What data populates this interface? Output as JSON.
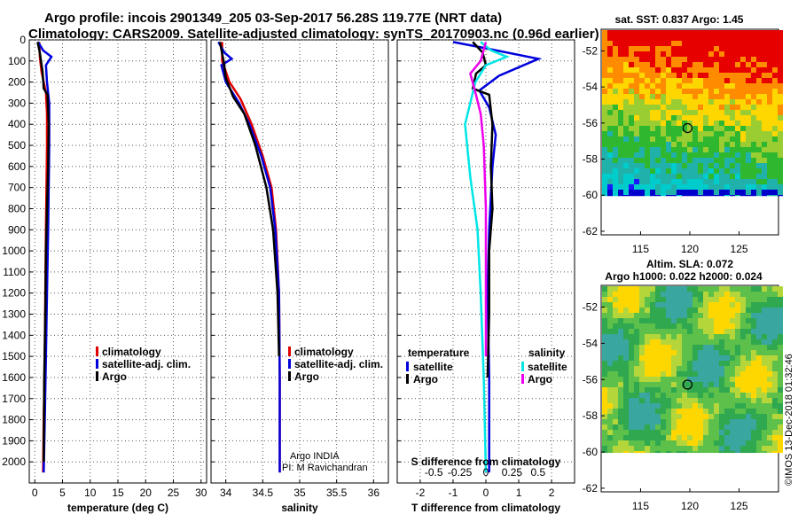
{
  "header": {
    "line1": "Argo profile: incois 2901349_205 03-Sep-2017 56.28S 119.77E (NRT data)",
    "line2": "Climatology: CARS2009. Satellite-adjusted climatology: synTS_20170903.nc (0.96d earlier)"
  },
  "colors": {
    "climatology": "#e00000",
    "satellite": "#0000dd",
    "argo": "#000000",
    "sat_salinity": "#00e5e5",
    "argo_salinity": "#ee00ee"
  },
  "chart_data": [
    {
      "type": "line",
      "name": "temperature",
      "xlabel": "temperature (deg C)",
      "xlim": [
        -1,
        31
      ],
      "xticks": [
        0,
        5,
        10,
        15,
        20,
        25,
        30
      ],
      "ylim": [
        2100,
        0
      ],
      "yticks": [
        0,
        100,
        200,
        300,
        400,
        500,
        600,
        700,
        800,
        900,
        1000,
        1100,
        1200,
        1300,
        1400,
        1500,
        1600,
        1700,
        1800,
        1900,
        2000
      ],
      "legend": [
        "climatology",
        "satellite-adj. clim.",
        "Argo"
      ],
      "series": [
        {
          "name": "climatology",
          "x": [
            0.8,
            0.9,
            1.2,
            1.6,
            2.0,
            2.2,
            2.2,
            2.1,
            2.0,
            1.9,
            1.8,
            1.6,
            1.5
          ],
          "depth": [
            10,
            80,
            150,
            200,
            250,
            350,
            500,
            700,
            900,
            1200,
            1500,
            1800,
            2050
          ]
        },
        {
          "name": "satellite-adj. clim.",
          "x": [
            0.6,
            1.5,
            3.0,
            2.0,
            2.2,
            2.6,
            2.6,
            2.5,
            2.4,
            2.2,
            2.0,
            1.8,
            1.6
          ],
          "depth": [
            10,
            50,
            80,
            120,
            200,
            300,
            500,
            700,
            900,
            1200,
            1500,
            1800,
            2050
          ]
        },
        {
          "name": "Argo",
          "x": [
            0.5,
            0.9,
            1.4,
            1.6,
            2.3,
            2.5,
            2.4,
            2.2,
            2.0,
            1.9,
            1.7,
            1.6
          ],
          "depth": [
            10,
            60,
            150,
            230,
            260,
            400,
            600,
            800,
            1000,
            1300,
            1600,
            2000
          ]
        }
      ]
    },
    {
      "type": "line",
      "name": "salinity",
      "xlabel": "salinity",
      "xlim": [
        33.8,
        36.2
      ],
      "xticks": [
        34,
        34.5,
        35,
        35.5,
        36
      ],
      "ylim": [
        2100,
        0
      ],
      "legend": [
        "climatology",
        "satellite-adj. clim.",
        "Argo"
      ],
      "annotation": [
        "Argo INDIA",
        "PI: M Ravichandran"
      ],
      "series": [
        {
          "name": "climatology",
          "x": [
            33.95,
            33.95,
            34.05,
            34.2,
            34.35,
            34.5,
            34.62,
            34.68,
            34.72,
            34.73,
            34.73
          ],
          "depth": [
            10,
            100,
            200,
            280,
            400,
            550,
            700,
            900,
            1200,
            1600,
            2050
          ]
        },
        {
          "name": "satellite-adj. clim.",
          "x": [
            33.9,
            33.98,
            34.08,
            33.94,
            34.0,
            34.18,
            34.32,
            34.48,
            34.6,
            34.67,
            34.72,
            34.73,
            34.73
          ],
          "depth": [
            10,
            60,
            90,
            120,
            200,
            300,
            400,
            550,
            700,
            900,
            1200,
            1600,
            2050
          ]
        },
        {
          "name": "Argo",
          "x": [
            33.92,
            33.97,
            34.0,
            34.1,
            34.25,
            34.4,
            34.55,
            34.64,
            34.7,
            34.72
          ],
          "depth": [
            10,
            100,
            180,
            270,
            350,
            500,
            700,
            900,
            1200,
            1500
          ]
        }
      ]
    },
    {
      "type": "line",
      "name": "difference",
      "xlabel": "T difference from climatology",
      "xlabel2": "S difference from climatology",
      "xlim": [
        -2.7,
        2.7
      ],
      "xticks": [
        -2,
        -1,
        0,
        1,
        2
      ],
      "xlim2": [
        -0.85,
        0.85
      ],
      "xticks2": [
        -0.5,
        -0.25,
        0,
        0.25,
        0.5
      ],
      "ylim": [
        2100,
        0
      ],
      "legend_left_title": "temperature",
      "legend_right_title": "salinity",
      "legend": [
        "satellite",
        "Argo",
        "satellite",
        "Argo"
      ],
      "series": [
        {
          "name": "satellite (T)",
          "x": [
            -1.0,
            0.0,
            1.6,
            0.4,
            -0.2,
            0.1,
            0.3,
            0.2,
            0.1,
            0.05,
            0.1,
            0.1
          ],
          "depth": [
            10,
            40,
            90,
            170,
            240,
            320,
            450,
            600,
            900,
            1200,
            1600,
            2050
          ]
        },
        {
          "name": "Argo (T)",
          "x": [
            -0.4,
            -0.1,
            0.0,
            -0.3,
            -0.4,
            0.1,
            0.2,
            0.15,
            0.2,
            0.1,
            0.1,
            0.05
          ],
          "depth": [
            10,
            60,
            120,
            160,
            230,
            260,
            400,
            600,
            800,
            1000,
            1300,
            1600
          ]
        },
        {
          "name": "satellite (S)",
          "x": [
            -0.05,
            0.05,
            0.2,
            0.0,
            -0.1,
            -0.2,
            -0.15,
            -0.08,
            -0.05,
            -0.02,
            0.0
          ],
          "depth": [
            10,
            50,
            80,
            120,
            200,
            400,
            650,
            900,
            1200,
            1600,
            2050
          ]
        },
        {
          "name": "Argo (S)",
          "x": [
            0.0,
            -0.05,
            -0.15,
            -0.1,
            -0.05,
            -0.02,
            0.0,
            0.0
          ],
          "depth": [
            10,
            100,
            160,
            250,
            350,
            500,
            800,
            1500
          ]
        }
      ]
    },
    {
      "type": "heatmap",
      "name": "sst-map",
      "title": "sat. SST: 0.837 Argo: 1.45",
      "xticks": [
        115,
        120,
        125
      ],
      "yticks": [
        -52,
        -54,
        -56,
        -58,
        -60,
        -62
      ],
      "xlim": [
        111,
        129
      ],
      "ylim": [
        -62.2,
        -50.8
      ],
      "marker": {
        "lon": 119.77,
        "lat": -56.28
      }
    },
    {
      "type": "heatmap",
      "name": "sla-map",
      "title": "Altim. SLA: 0.072",
      "subtitle": "Argo h1000: 0.022 h2000: 0.024",
      "xticks": [
        115,
        120,
        125
      ],
      "yticks": [
        -52,
        -54,
        -56,
        -58,
        -60,
        -62
      ],
      "xlim": [
        111,
        129
      ],
      "ylim": [
        -62.2,
        -50.8
      ],
      "marker": {
        "lon": 119.77,
        "lat": -56.28
      }
    }
  ],
  "footer": "©IMOS 13-Dec-2018 01:32:46"
}
